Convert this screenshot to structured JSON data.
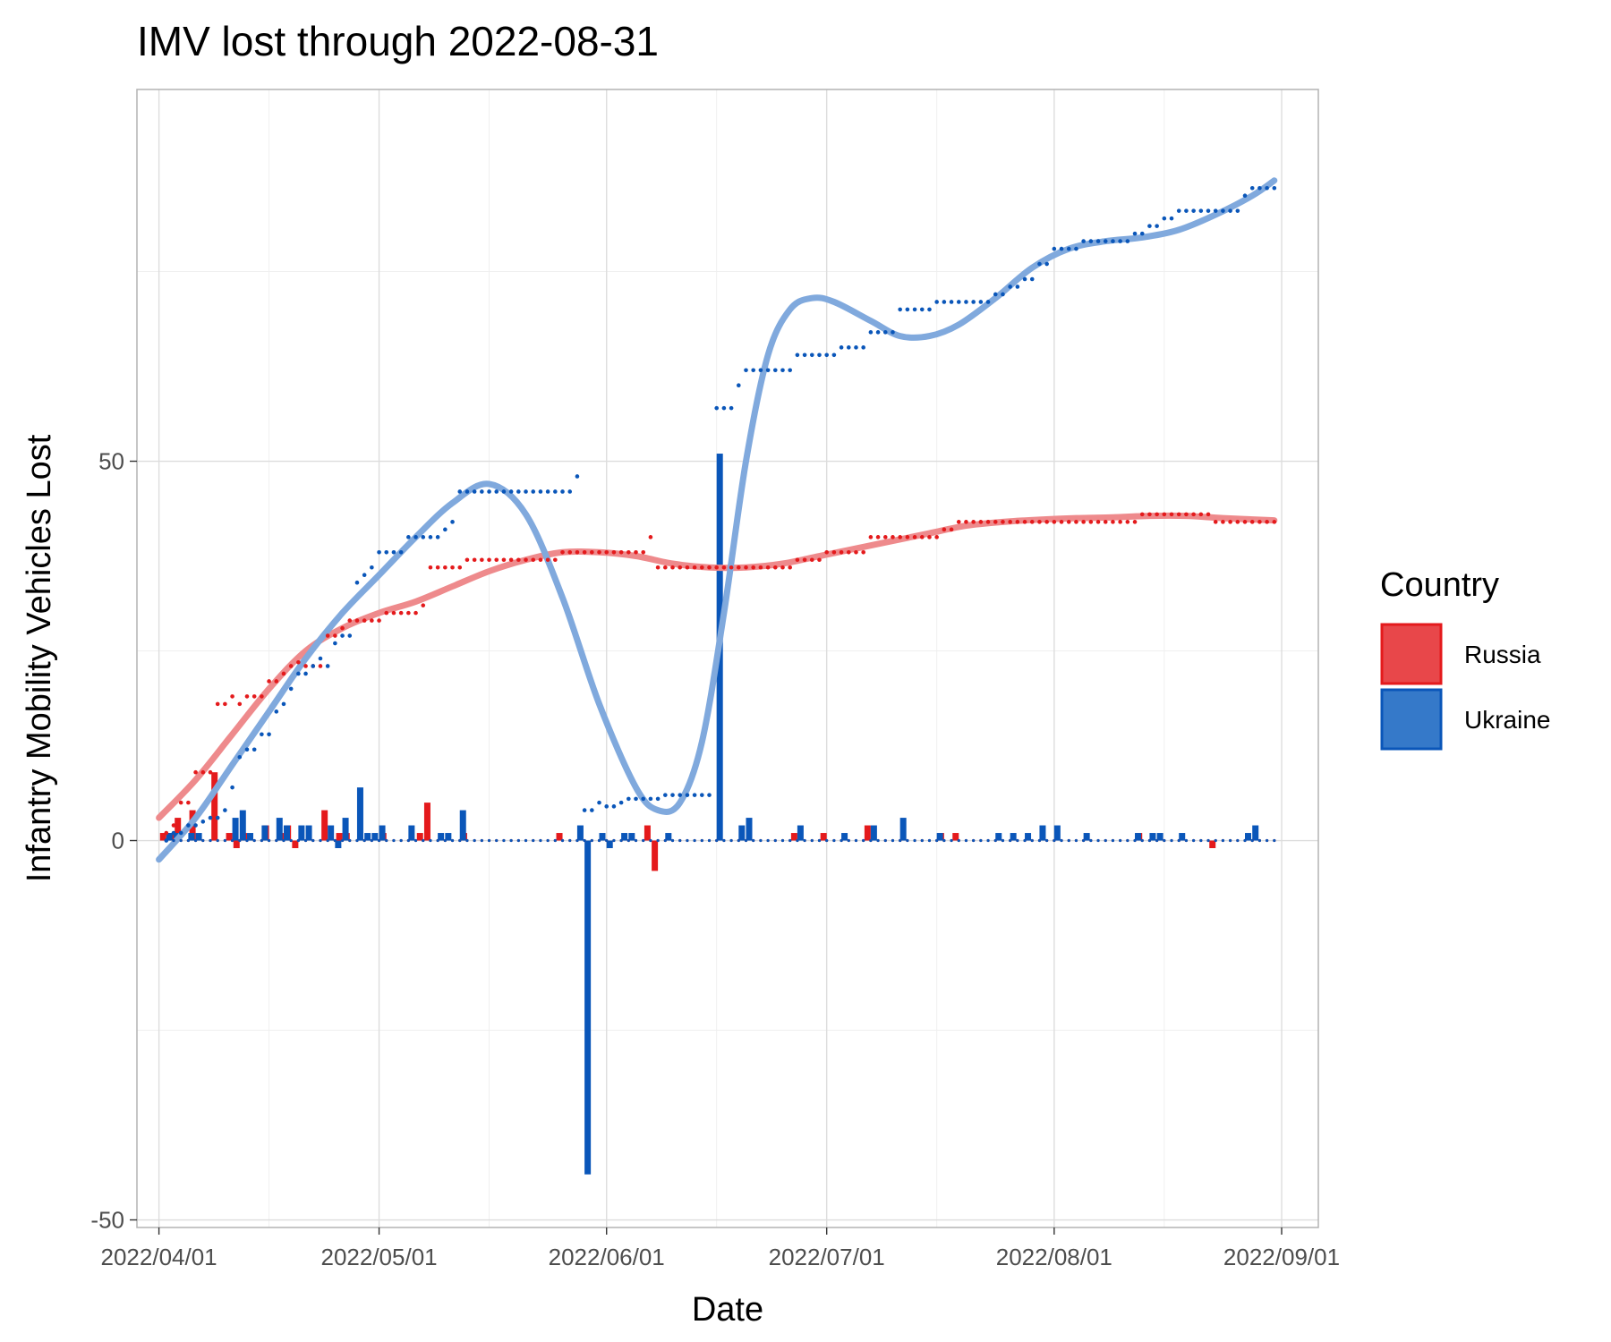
{
  "chart_data": {
    "type": "line",
    "title": "IMV lost through 2022-08-31",
    "xlabel": "Date",
    "ylabel": "Infantry Mobility Vehicles Lost",
    "xlim": [
      "2022-03-29",
      "2022-09-06"
    ],
    "ylim": [
      -51,
      99
    ],
    "x_ticks": [
      "2022/04/01",
      "2022/05/01",
      "2022/06/01",
      "2022/07/01",
      "2022/08/01",
      "2022/09/01"
    ],
    "y_ticks": [
      -50,
      0,
      50
    ],
    "grid": true,
    "legend": {
      "title": "Country",
      "position": "right",
      "entries": [
        "Russia",
        "Ukraine"
      ]
    },
    "colors": {
      "Russia": "#E41A1C",
      "Ukraine": "#0A56B9",
      "Russia_smooth": "#EE8A8C",
      "Ukraine_smooth": "#80A9DD",
      "Russia_legend_fill": "#E8474A",
      "Ukraine_legend_fill": "#3579C9"
    },
    "series": [
      {
        "name": "Russia",
        "cumulative_steps": [
          [
            "2022-04-02",
            1
          ],
          [
            "2022-04-03",
            2
          ],
          [
            "2022-04-04",
            5
          ],
          [
            "2022-04-06",
            9
          ],
          [
            "2022-04-09",
            18
          ],
          [
            "2022-04-11",
            19
          ],
          [
            "2022-04-12",
            18
          ],
          [
            "2022-04-13",
            19
          ],
          [
            "2022-04-16",
            21
          ],
          [
            "2022-04-18",
            22
          ],
          [
            "2022-04-19",
            23
          ],
          [
            "2022-04-20",
            23.5
          ],
          [
            "2022-04-21",
            23
          ],
          [
            "2022-04-24",
            27
          ],
          [
            "2022-04-26",
            28
          ],
          [
            "2022-04-27",
            29
          ],
          [
            "2022-05-02",
            30
          ],
          [
            "2022-05-07",
            31
          ],
          [
            "2022-05-08",
            36
          ],
          [
            "2022-05-13",
            37
          ],
          [
            "2022-05-26",
            38
          ],
          [
            "2022-06-07",
            40
          ],
          [
            "2022-06-08",
            36
          ],
          [
            "2022-06-27",
            37
          ],
          [
            "2022-07-01",
            38
          ],
          [
            "2022-07-07",
            40
          ],
          [
            "2022-07-17",
            41
          ],
          [
            "2022-07-19",
            42
          ],
          [
            "2022-08-13",
            43
          ],
          [
            "2022-08-23",
            42
          ],
          [
            "2022-08-31",
            42
          ]
        ],
        "daily_changes": [
          [
            "2022-04-02",
            1
          ],
          [
            "2022-04-03",
            1
          ],
          [
            "2022-04-04",
            3
          ],
          [
            "2022-04-06",
            4
          ],
          [
            "2022-04-09",
            9
          ],
          [
            "2022-04-11",
            1
          ],
          [
            "2022-04-12",
            -1
          ],
          [
            "2022-04-13",
            1
          ],
          [
            "2022-04-16",
            2
          ],
          [
            "2022-04-18",
            1
          ],
          [
            "2022-04-19",
            2
          ],
          [
            "2022-04-20",
            -1
          ],
          [
            "2022-04-24",
            4
          ],
          [
            "2022-04-26",
            1
          ],
          [
            "2022-04-27",
            1
          ],
          [
            "2022-05-02",
            1
          ],
          [
            "2022-05-07",
            1
          ],
          [
            "2022-05-08",
            5
          ],
          [
            "2022-05-13",
            1
          ],
          [
            "2022-05-26",
            1
          ],
          [
            "2022-06-07",
            2
          ],
          [
            "2022-06-08",
            -4
          ],
          [
            "2022-06-27",
            1
          ],
          [
            "2022-07-01",
            1
          ],
          [
            "2022-07-07",
            2
          ],
          [
            "2022-07-17",
            1
          ],
          [
            "2022-07-19",
            1
          ],
          [
            "2022-08-13",
            1
          ],
          [
            "2022-08-23",
            -1
          ]
        ],
        "smooth": [
          [
            "2022-04-01",
            3
          ],
          [
            "2022-04-06",
            8
          ],
          [
            "2022-04-11",
            14
          ],
          [
            "2022-04-16",
            20
          ],
          [
            "2022-04-21",
            25
          ],
          [
            "2022-04-26",
            28
          ],
          [
            "2022-05-01",
            30
          ],
          [
            "2022-05-06",
            31.5
          ],
          [
            "2022-05-11",
            33.5
          ],
          [
            "2022-05-16",
            35.5
          ],
          [
            "2022-05-21",
            37
          ],
          [
            "2022-05-26",
            38
          ],
          [
            "2022-05-31",
            38
          ],
          [
            "2022-06-05",
            37.5
          ],
          [
            "2022-06-10",
            36.5
          ],
          [
            "2022-06-15",
            36
          ],
          [
            "2022-06-20",
            36
          ],
          [
            "2022-06-25",
            36.5
          ],
          [
            "2022-06-30",
            37.5
          ],
          [
            "2022-07-05",
            38.5
          ],
          [
            "2022-07-10",
            39.5
          ],
          [
            "2022-07-15",
            40.5
          ],
          [
            "2022-07-20",
            41.5
          ],
          [
            "2022-07-25",
            42
          ],
          [
            "2022-07-30",
            42.3
          ],
          [
            "2022-08-04",
            42.5
          ],
          [
            "2022-08-09",
            42.6
          ],
          [
            "2022-08-14",
            42.8
          ],
          [
            "2022-08-19",
            42.8
          ],
          [
            "2022-08-24",
            42.5
          ],
          [
            "2022-08-31",
            42.2
          ]
        ]
      },
      {
        "name": "Ukraine",
        "cumulative_steps": [
          [
            "2022-04-02",
            0
          ],
          [
            "2022-04-03",
            1
          ],
          [
            "2022-04-05",
            2
          ],
          [
            "2022-04-07",
            2.5
          ],
          [
            "2022-04-08",
            3
          ],
          [
            "2022-04-10",
            4
          ],
          [
            "2022-04-11",
            7
          ],
          [
            "2022-04-12",
            11
          ],
          [
            "2022-04-13",
            12
          ],
          [
            "2022-04-15",
            14
          ],
          [
            "2022-04-17",
            17
          ],
          [
            "2022-04-18",
            18
          ],
          [
            "2022-04-19",
            20
          ],
          [
            "2022-04-20",
            22
          ],
          [
            "2022-04-22",
            23
          ],
          [
            "2022-04-23",
            24
          ],
          [
            "2022-04-24",
            23
          ],
          [
            "2022-04-25",
            26
          ],
          [
            "2022-04-26",
            27
          ],
          [
            "2022-04-28",
            34
          ],
          [
            "2022-04-29",
            35
          ],
          [
            "2022-04-30",
            36
          ],
          [
            "2022-05-01",
            38
          ],
          [
            "2022-05-05",
            40
          ],
          [
            "2022-05-10",
            41
          ],
          [
            "2022-05-11",
            42
          ],
          [
            "2022-05-12",
            46
          ],
          [
            "2022-05-28",
            48
          ],
          [
            "2022-05-29",
            4
          ],
          [
            "2022-05-31",
            5
          ],
          [
            "2022-06-01",
            4.5
          ],
          [
            "2022-06-03",
            5
          ],
          [
            "2022-06-04",
            5.5
          ],
          [
            "2022-06-09",
            6
          ],
          [
            "2022-06-16",
            57
          ],
          [
            "2022-06-19",
            60
          ],
          [
            "2022-06-20",
            62
          ],
          [
            "2022-06-27",
            64
          ],
          [
            "2022-07-03",
            65
          ],
          [
            "2022-07-07",
            67
          ],
          [
            "2022-07-11",
            70
          ],
          [
            "2022-07-16",
            71
          ],
          [
            "2022-07-24",
            72
          ],
          [
            "2022-07-26",
            73
          ],
          [
            "2022-07-28",
            74
          ],
          [
            "2022-07-30",
            76
          ],
          [
            "2022-08-01",
            78
          ],
          [
            "2022-08-05",
            79
          ],
          [
            "2022-08-12",
            80
          ],
          [
            "2022-08-14",
            81
          ],
          [
            "2022-08-16",
            82
          ],
          [
            "2022-08-18",
            83
          ],
          [
            "2022-08-27",
            85
          ],
          [
            "2022-08-28",
            86
          ],
          [
            "2022-08-31",
            86
          ]
        ],
        "daily_changes": [
          [
            "2022-04-02",
            1
          ],
          [
            "2022-04-03",
            1
          ],
          [
            "2022-04-05",
            1
          ],
          [
            "2022-04-06",
            1
          ],
          [
            "2022-04-11",
            3
          ],
          [
            "2022-04-12",
            4
          ],
          [
            "2022-04-13",
            1
          ],
          [
            "2022-04-15",
            2
          ],
          [
            "2022-04-17",
            3
          ],
          [
            "2022-04-18",
            2
          ],
          [
            "2022-04-20",
            2
          ],
          [
            "2022-04-21",
            2
          ],
          [
            "2022-04-24",
            2
          ],
          [
            "2022-04-25",
            -1
          ],
          [
            "2022-04-26",
            3
          ],
          [
            "2022-04-28",
            7
          ],
          [
            "2022-04-29",
            1
          ],
          [
            "2022-04-30",
            1
          ],
          [
            "2022-05-01",
            2
          ],
          [
            "2022-05-05",
            2
          ],
          [
            "2022-05-09",
            1
          ],
          [
            "2022-05-10",
            1
          ],
          [
            "2022-05-12",
            4
          ],
          [
            "2022-05-28",
            2
          ],
          [
            "2022-05-29",
            -44
          ],
          [
            "2022-05-31",
            1
          ],
          [
            "2022-06-01",
            -1
          ],
          [
            "2022-06-03",
            1
          ],
          [
            "2022-06-04",
            1
          ],
          [
            "2022-06-09",
            1
          ],
          [
            "2022-06-16",
            51
          ],
          [
            "2022-06-19",
            2
          ],
          [
            "2022-06-20",
            3
          ],
          [
            "2022-06-27",
            2
          ],
          [
            "2022-07-03",
            1
          ],
          [
            "2022-07-07",
            2
          ],
          [
            "2022-07-11",
            3
          ],
          [
            "2022-07-16",
            1
          ],
          [
            "2022-07-24",
            1
          ],
          [
            "2022-07-26",
            1
          ],
          [
            "2022-07-28",
            1
          ],
          [
            "2022-07-30",
            2
          ],
          [
            "2022-08-01",
            2
          ],
          [
            "2022-08-05",
            1
          ],
          [
            "2022-08-12",
            1
          ],
          [
            "2022-08-14",
            1
          ],
          [
            "2022-08-15",
            1
          ],
          [
            "2022-08-18",
            1
          ],
          [
            "2022-08-27",
            1
          ],
          [
            "2022-08-28",
            2
          ]
        ],
        "smooth": [
          [
            "2022-04-01",
            -2.5
          ],
          [
            "2022-04-06",
            3
          ],
          [
            "2022-04-11",
            10
          ],
          [
            "2022-04-16",
            17
          ],
          [
            "2022-04-21",
            24
          ],
          [
            "2022-04-26",
            30
          ],
          [
            "2022-05-01",
            35
          ],
          [
            "2022-05-06",
            40
          ],
          [
            "2022-05-11",
            44.5
          ],
          [
            "2022-05-16",
            47
          ],
          [
            "2022-05-21",
            43
          ],
          [
            "2022-05-26",
            32
          ],
          [
            "2022-05-31",
            18
          ],
          [
            "2022-06-05",
            7
          ],
          [
            "2022-06-08",
            4
          ],
          [
            "2022-06-11",
            5
          ],
          [
            "2022-06-14",
            13
          ],
          [
            "2022-06-17",
            30
          ],
          [
            "2022-06-20",
            50
          ],
          [
            "2022-06-23",
            64
          ],
          [
            "2022-06-26",
            70
          ],
          [
            "2022-06-29",
            71.5
          ],
          [
            "2022-07-02",
            71
          ],
          [
            "2022-07-07",
            68.5
          ],
          [
            "2022-07-11",
            66.5
          ],
          [
            "2022-07-15",
            66.5
          ],
          [
            "2022-07-19",
            68
          ],
          [
            "2022-07-24",
            71.5
          ],
          [
            "2022-07-29",
            75.5
          ],
          [
            "2022-08-03",
            78
          ],
          [
            "2022-08-08",
            79
          ],
          [
            "2022-08-13",
            79.5
          ],
          [
            "2022-08-18",
            80.5
          ],
          [
            "2022-08-23",
            82.5
          ],
          [
            "2022-08-28",
            85
          ],
          [
            "2022-08-31",
            87
          ]
        ]
      }
    ]
  }
}
